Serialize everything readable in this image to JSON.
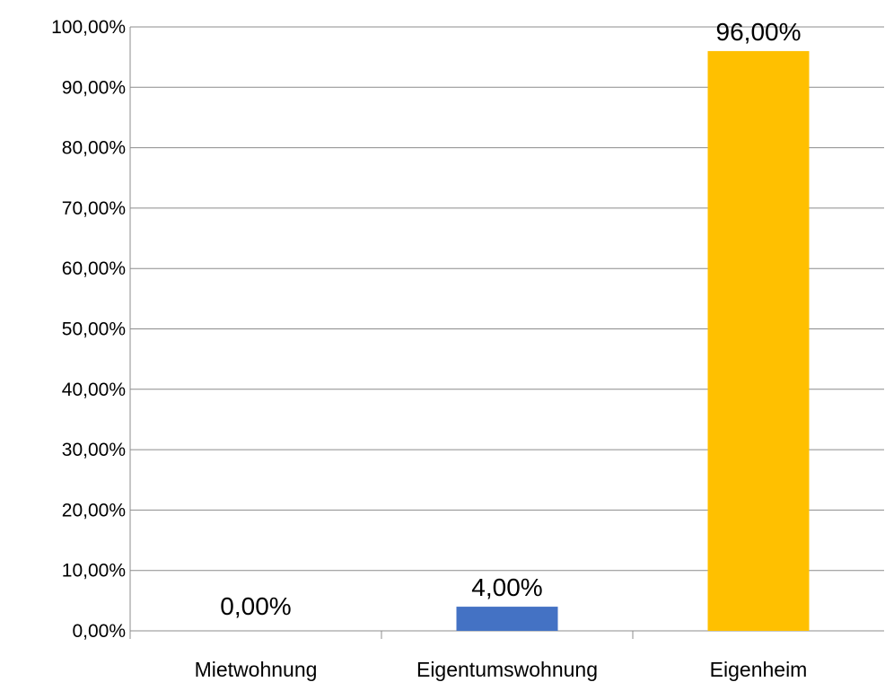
{
  "chart_data": {
    "type": "bar",
    "title": "",
    "xlabel": "",
    "ylabel": "",
    "categories": [
      "Mietwohnung",
      "Eigentumswohnung",
      "Eigenheim"
    ],
    "values": [
      0,
      4,
      96
    ],
    "value_labels": [
      "0,00%",
      "4,00%",
      "96,00%"
    ],
    "bar_colors": [
      "#4472c4",
      "#4472c4",
      "#ffc000"
    ],
    "ylim": [
      0,
      100
    ],
    "yticks": [
      0,
      10,
      20,
      30,
      40,
      50,
      60,
      70,
      80,
      90,
      100
    ],
    "ytick_labels": [
      "0,00%",
      "10,00%",
      "20,00%",
      "30,00%",
      "40,00%",
      "50,00%",
      "60,00%",
      "70,00%",
      "80,00%",
      "90,00%",
      "100,00%"
    ],
    "grid": true,
    "legend": "none"
  }
}
